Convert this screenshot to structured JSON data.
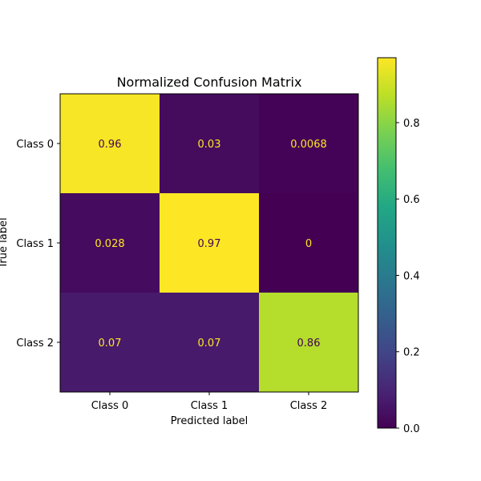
{
  "chart_data": {
    "type": "heatmap",
    "title": "Normalized Confusion Matrix",
    "xlabel": "Predicted label",
    "ylabel": "True label",
    "x_categories": [
      "Class 0",
      "Class 1",
      "Class 2"
    ],
    "y_categories": [
      "Class 0",
      "Class 1",
      "Class 2"
    ],
    "values": [
      [
        0.96,
        0.03,
        0.0068
      ],
      [
        0.028,
        0.97,
        0
      ],
      [
        0.07,
        0.07,
        0.86
      ]
    ],
    "value_labels": [
      [
        "0.96",
        "0.03",
        "0.0068"
      ],
      [
        "0.028",
        "0.97",
        "0"
      ],
      [
        "0.07",
        "0.07",
        "0.86"
      ]
    ],
    "colormap": "viridis",
    "colorbar": {
      "range": [
        0,
        0.97
      ],
      "ticks": [
        0.0,
        0.2,
        0.4,
        0.6,
        0.8
      ],
      "tick_labels": [
        "0.0",
        "0.2",
        "0.4",
        "0.6",
        "0.8"
      ]
    },
    "text_color_on_dark": "#fde725",
    "text_color_on_light": "#440154"
  }
}
